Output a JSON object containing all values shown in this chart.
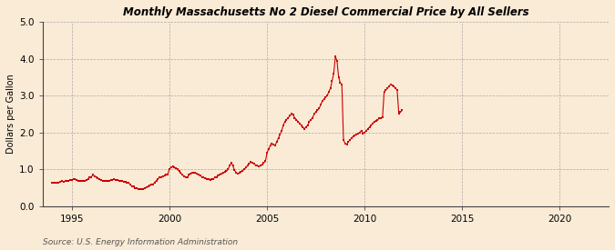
{
  "title": "Monthly Massachusetts No 2 Diesel Commercial Price by All Sellers",
  "ylabel": "Dollars per Gallon",
  "source": "Source: U.S. Energy Information Administration",
  "background_color": "#faebd7",
  "plot_bg_color": "#faebd7",
  "line_color": "#cc0000",
  "marker": "s",
  "markersize": 1.8,
  "linewidth": 0.8,
  "ylim": [
    0.0,
    5.0
  ],
  "yticks": [
    0.0,
    1.0,
    2.0,
    3.0,
    4.0,
    5.0
  ],
  "xlim_start": 1993.5,
  "xlim_end": 2022.5,
  "xticks": [
    1995,
    2000,
    2005,
    2010,
    2015,
    2020
  ],
  "data": {
    "dates": [
      1994.0,
      1994.083,
      1994.167,
      1994.25,
      1994.333,
      1994.417,
      1994.5,
      1994.583,
      1994.667,
      1994.75,
      1994.833,
      1994.917,
      1995.0,
      1995.083,
      1995.167,
      1995.25,
      1995.333,
      1995.417,
      1995.5,
      1995.583,
      1995.667,
      1995.75,
      1995.833,
      1995.917,
      1996.0,
      1996.083,
      1996.167,
      1996.25,
      1996.333,
      1996.417,
      1996.5,
      1996.583,
      1996.667,
      1996.75,
      1996.833,
      1996.917,
      1997.0,
      1997.083,
      1997.167,
      1997.25,
      1997.333,
      1997.417,
      1997.5,
      1997.583,
      1997.667,
      1997.75,
      1997.833,
      1997.917,
      1998.0,
      1998.083,
      1998.167,
      1998.25,
      1998.333,
      1998.417,
      1998.5,
      1998.583,
      1998.667,
      1998.75,
      1998.833,
      1998.917,
      1999.0,
      1999.083,
      1999.167,
      1999.25,
      1999.333,
      1999.417,
      1999.5,
      1999.583,
      1999.667,
      1999.75,
      1999.833,
      1999.917,
      2000.0,
      2000.083,
      2000.167,
      2000.25,
      2000.333,
      2000.417,
      2000.5,
      2000.583,
      2000.667,
      2000.75,
      2000.833,
      2000.917,
      2001.0,
      2001.083,
      2001.167,
      2001.25,
      2001.333,
      2001.417,
      2001.5,
      2001.583,
      2001.667,
      2001.75,
      2001.833,
      2001.917,
      2002.0,
      2002.083,
      2002.167,
      2002.25,
      2002.333,
      2002.417,
      2002.5,
      2002.583,
      2002.667,
      2002.75,
      2002.833,
      2002.917,
      2003.0,
      2003.083,
      2003.167,
      2003.25,
      2003.333,
      2003.417,
      2003.5,
      2003.583,
      2003.667,
      2003.75,
      2003.833,
      2003.917,
      2004.0,
      2004.083,
      2004.167,
      2004.25,
      2004.333,
      2004.417,
      2004.5,
      2004.583,
      2004.667,
      2004.75,
      2004.833,
      2004.917,
      2005.0,
      2005.083,
      2005.167,
      2005.25,
      2005.333,
      2005.417,
      2005.5,
      2005.583,
      2005.667,
      2005.75,
      2005.833,
      2005.917,
      2006.0,
      2006.083,
      2006.167,
      2006.25,
      2006.333,
      2006.417,
      2006.5,
      2006.583,
      2006.667,
      2006.75,
      2006.833,
      2006.917,
      2007.0,
      2007.083,
      2007.167,
      2007.25,
      2007.333,
      2007.417,
      2007.5,
      2007.583,
      2007.667,
      2007.75,
      2007.833,
      2007.917,
      2008.0,
      2008.083,
      2008.167,
      2008.25,
      2008.333,
      2008.417,
      2008.5,
      2008.583,
      2008.667,
      2008.75,
      2008.833,
      2008.917,
      2009.0,
      2009.083,
      2009.167,
      2009.25,
      2009.333,
      2009.417,
      2009.5,
      2009.583,
      2009.667,
      2009.75,
      2009.833,
      2009.917,
      2010.0,
      2010.083,
      2010.167,
      2010.25,
      2010.333,
      2010.417,
      2010.5,
      2010.583,
      2010.667,
      2010.75,
      2010.833,
      2010.917,
      2011.0,
      2011.083,
      2011.167,
      2011.25,
      2011.333,
      2011.417,
      2011.5,
      2011.583,
      2011.667,
      2011.75,
      2011.833,
      2011.917
    ],
    "values": [
      0.65,
      0.64,
      0.63,
      0.64,
      0.65,
      0.67,
      0.68,
      0.67,
      0.68,
      0.69,
      0.7,
      0.71,
      0.72,
      0.73,
      0.74,
      0.72,
      0.7,
      0.69,
      0.68,
      0.69,
      0.7,
      0.71,
      0.75,
      0.78,
      0.8,
      0.85,
      0.82,
      0.79,
      0.76,
      0.73,
      0.71,
      0.7,
      0.69,
      0.68,
      0.69,
      0.7,
      0.71,
      0.72,
      0.73,
      0.72,
      0.71,
      0.7,
      0.69,
      0.68,
      0.67,
      0.66,
      0.65,
      0.64,
      0.58,
      0.55,
      0.53,
      0.5,
      0.49,
      0.48,
      0.47,
      0.47,
      0.48,
      0.5,
      0.52,
      0.55,
      0.57,
      0.58,
      0.6,
      0.65,
      0.7,
      0.75,
      0.78,
      0.8,
      0.82,
      0.83,
      0.85,
      0.87,
      1.02,
      1.05,
      1.08,
      1.05,
      1.03,
      1.0,
      0.95,
      0.9,
      0.85,
      0.82,
      0.8,
      0.78,
      0.85,
      0.88,
      0.9,
      0.92,
      0.9,
      0.88,
      0.85,
      0.83,
      0.8,
      0.78,
      0.77,
      0.75,
      0.73,
      0.72,
      0.73,
      0.75,
      0.78,
      0.8,
      0.83,
      0.85,
      0.88,
      0.9,
      0.93,
      0.95,
      1.0,
      1.1,
      1.18,
      1.1,
      0.98,
      0.92,
      0.88,
      0.9,
      0.93,
      0.97,
      1.0,
      1.05,
      1.1,
      1.15,
      1.2,
      1.18,
      1.15,
      1.12,
      1.1,
      1.08,
      1.1,
      1.13,
      1.18,
      1.22,
      1.45,
      1.55,
      1.65,
      1.7,
      1.68,
      1.65,
      1.75,
      1.85,
      1.95,
      2.05,
      2.2,
      2.3,
      2.35,
      2.4,
      2.45,
      2.5,
      2.48,
      2.4,
      2.35,
      2.3,
      2.25,
      2.2,
      2.15,
      2.1,
      2.15,
      2.2,
      2.3,
      2.35,
      2.4,
      2.5,
      2.55,
      2.6,
      2.65,
      2.75,
      2.85,
      2.9,
      2.95,
      3.0,
      3.1,
      3.2,
      3.4,
      3.6,
      4.05,
      3.95,
      3.5,
      3.35,
      3.3,
      1.8,
      1.7,
      1.68,
      1.75,
      1.8,
      1.85,
      1.9,
      1.92,
      1.95,
      1.98,
      2.0,
      2.05,
      1.98,
      2.0,
      2.05,
      2.1,
      2.15,
      2.2,
      2.25,
      2.3,
      2.32,
      2.35,
      2.38,
      2.4,
      2.42,
      3.1,
      3.15,
      3.2,
      3.25,
      3.3,
      3.28,
      3.25,
      3.2,
      3.15,
      2.5,
      2.55,
      2.6
    ]
  }
}
